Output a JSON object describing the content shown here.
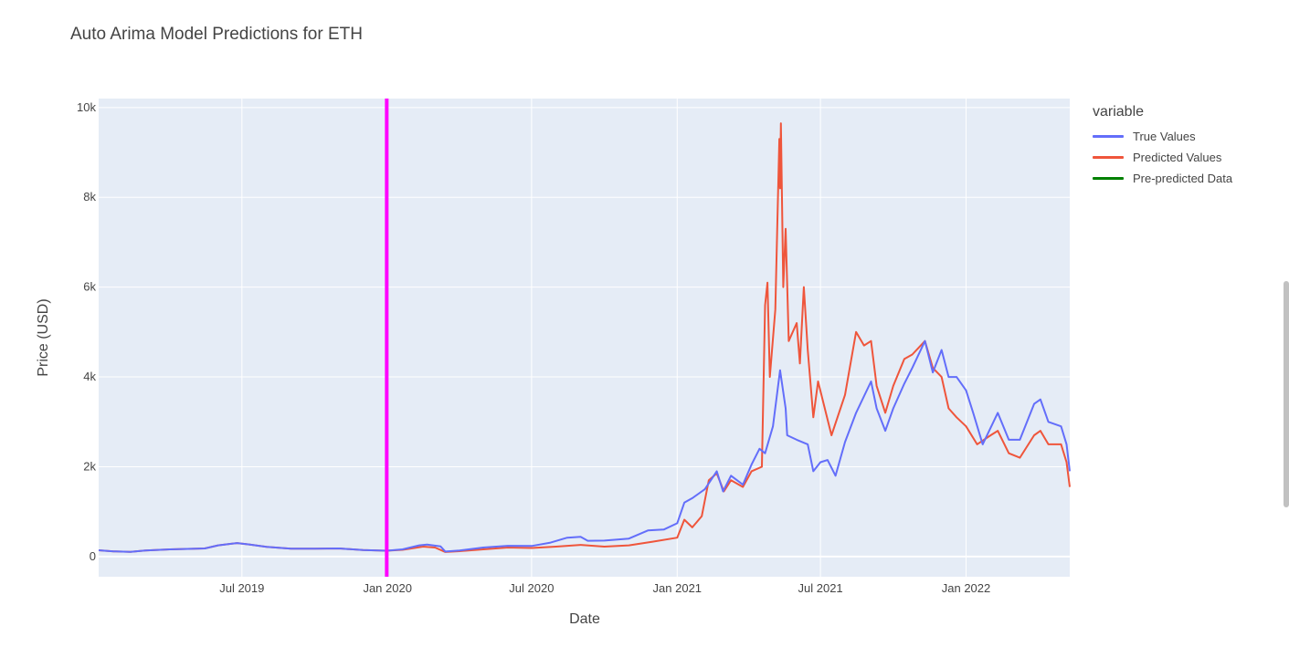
{
  "chart_data": {
    "type": "line",
    "title": "Auto Arima Model Predictions for ETH",
    "xlabel": "Date",
    "ylabel": "Price (USD)",
    "x_range": [
      "2019-01-01",
      "2022-05-12"
    ],
    "ylim": [
      -450,
      10200
    ],
    "x_ticks": [
      {
        "date": "2019-07-01",
        "label": "Jul 2019"
      },
      {
        "date": "2020-01-01",
        "label": "Jan 2020"
      },
      {
        "date": "2020-07-01",
        "label": "Jul 2020"
      },
      {
        "date": "2021-01-01",
        "label": "Jan 2021"
      },
      {
        "date": "2021-07-01",
        "label": "Jul 2021"
      },
      {
        "date": "2022-01-01",
        "label": "Jan 2022"
      }
    ],
    "y_ticks": [
      {
        "value": 0,
        "label": "0"
      },
      {
        "value": 2000,
        "label": "2k"
      },
      {
        "value": 4000,
        "label": "4k"
      },
      {
        "value": 6000,
        "label": "6k"
      },
      {
        "value": 8000,
        "label": "8k"
      },
      {
        "value": 10000,
        "label": "10k"
      }
    ],
    "grid": true,
    "legend": {
      "title": "variable",
      "position": "right"
    },
    "vertical_marker": {
      "date": "2019-12-31",
      "color": "#ff00ff"
    },
    "series": [
      {
        "name": "True Values",
        "color": "#636efa",
        "points": [
          [
            "2019-01-01",
            140
          ],
          [
            "2019-01-20",
            115
          ],
          [
            "2019-02-10",
            105
          ],
          [
            "2019-03-01",
            135
          ],
          [
            "2019-04-01",
            160
          ],
          [
            "2019-05-15",
            180
          ],
          [
            "2019-06-01",
            250
          ],
          [
            "2019-06-25",
            300
          ],
          [
            "2019-07-10",
            270
          ],
          [
            "2019-08-01",
            215
          ],
          [
            "2019-09-01",
            175
          ],
          [
            "2019-10-01",
            175
          ],
          [
            "2019-11-01",
            180
          ],
          [
            "2019-12-01",
            145
          ],
          [
            "2019-12-31",
            130
          ],
          [
            "2020-01-20",
            160
          ],
          [
            "2020-02-10",
            250
          ],
          [
            "2020-02-20",
            265
          ],
          [
            "2020-03-08",
            225
          ],
          [
            "2020-03-14",
            110
          ],
          [
            "2020-04-01",
            135
          ],
          [
            "2020-05-01",
            200
          ],
          [
            "2020-06-01",
            240
          ],
          [
            "2020-07-01",
            235
          ],
          [
            "2020-07-25",
            310
          ],
          [
            "2020-08-15",
            420
          ],
          [
            "2020-09-01",
            440
          ],
          [
            "2020-09-10",
            350
          ],
          [
            "2020-10-01",
            355
          ],
          [
            "2020-11-01",
            400
          ],
          [
            "2020-11-25",
            580
          ],
          [
            "2020-12-15",
            600
          ],
          [
            "2021-01-01",
            740
          ],
          [
            "2021-01-10",
            1200
          ],
          [
            "2021-01-20",
            1300
          ],
          [
            "2021-02-05",
            1500
          ],
          [
            "2021-02-20",
            1900
          ],
          [
            "2021-02-28",
            1450
          ],
          [
            "2021-03-10",
            1800
          ],
          [
            "2021-03-25",
            1600
          ],
          [
            "2021-04-05",
            2050
          ],
          [
            "2021-04-15",
            2400
          ],
          [
            "2021-04-22",
            2300
          ],
          [
            "2021-05-02",
            2900
          ],
          [
            "2021-05-11",
            4150
          ],
          [
            "2021-05-18",
            3300
          ],
          [
            "2021-05-20",
            2700
          ],
          [
            "2021-06-01",
            2600
          ],
          [
            "2021-06-15",
            2500
          ],
          [
            "2021-06-22",
            1900
          ],
          [
            "2021-07-01",
            2100
          ],
          [
            "2021-07-10",
            2150
          ],
          [
            "2021-07-20",
            1800
          ],
          [
            "2021-08-01",
            2550
          ],
          [
            "2021-08-15",
            3200
          ],
          [
            "2021-09-03",
            3900
          ],
          [
            "2021-09-10",
            3300
          ],
          [
            "2021-09-21",
            2800
          ],
          [
            "2021-10-01",
            3300
          ],
          [
            "2021-10-15",
            3850
          ],
          [
            "2021-10-25",
            4200
          ],
          [
            "2021-11-10",
            4800
          ],
          [
            "2021-11-20",
            4100
          ],
          [
            "2021-12-01",
            4600
          ],
          [
            "2021-12-10",
            4000
          ],
          [
            "2021-12-20",
            4000
          ],
          [
            "2022-01-01",
            3700
          ],
          [
            "2022-01-10",
            3200
          ],
          [
            "2022-01-22",
            2500
          ],
          [
            "2022-02-10",
            3200
          ],
          [
            "2022-02-24",
            2600
          ],
          [
            "2022-03-10",
            2600
          ],
          [
            "2022-03-28",
            3400
          ],
          [
            "2022-04-05",
            3500
          ],
          [
            "2022-04-15",
            3000
          ],
          [
            "2022-05-01",
            2900
          ],
          [
            "2022-05-08",
            2500
          ],
          [
            "2022-05-12",
            1900
          ]
        ]
      },
      {
        "name": "Predicted Values",
        "color": "#ef553b",
        "points": [
          [
            "2019-01-01",
            140
          ],
          [
            "2019-01-20",
            115
          ],
          [
            "2019-02-10",
            105
          ],
          [
            "2019-03-01",
            135
          ],
          [
            "2019-04-01",
            160
          ],
          [
            "2019-05-15",
            180
          ],
          [
            "2019-06-01",
            250
          ],
          [
            "2019-06-25",
            300
          ],
          [
            "2019-07-10",
            270
          ],
          [
            "2019-08-01",
            215
          ],
          [
            "2019-09-01",
            175
          ],
          [
            "2019-10-01",
            175
          ],
          [
            "2019-11-01",
            180
          ],
          [
            "2019-12-01",
            145
          ],
          [
            "2019-12-31",
            130
          ],
          [
            "2020-01-20",
            150
          ],
          [
            "2020-02-15",
            220
          ],
          [
            "2020-03-01",
            200
          ],
          [
            "2020-03-14",
            100
          ],
          [
            "2020-04-01",
            120
          ],
          [
            "2020-05-01",
            160
          ],
          [
            "2020-06-01",
            200
          ],
          [
            "2020-07-01",
            190
          ],
          [
            "2020-08-01",
            220
          ],
          [
            "2020-09-01",
            260
          ],
          [
            "2020-10-01",
            220
          ],
          [
            "2020-11-01",
            250
          ],
          [
            "2020-12-01",
            330
          ],
          [
            "2021-01-01",
            420
          ],
          [
            "2021-01-10",
            820
          ],
          [
            "2021-01-20",
            650
          ],
          [
            "2021-02-01",
            900
          ],
          [
            "2021-02-10",
            1700
          ],
          [
            "2021-02-20",
            1850
          ],
          [
            "2021-03-01",
            1450
          ],
          [
            "2021-03-10",
            1700
          ],
          [
            "2021-03-25",
            1550
          ],
          [
            "2021-04-05",
            1900
          ],
          [
            "2021-04-18",
            2000
          ],
          [
            "2021-04-22",
            5600
          ],
          [
            "2021-04-25",
            6100
          ],
          [
            "2021-04-28",
            4000
          ],
          [
            "2021-05-05",
            5500
          ],
          [
            "2021-05-10",
            9300
          ],
          [
            "2021-05-11",
            8200
          ],
          [
            "2021-05-12",
            9650
          ],
          [
            "2021-05-15",
            6000
          ],
          [
            "2021-05-18",
            7300
          ],
          [
            "2021-05-22",
            4800
          ],
          [
            "2021-06-01",
            5200
          ],
          [
            "2021-06-05",
            4300
          ],
          [
            "2021-06-10",
            6000
          ],
          [
            "2021-06-15",
            4600
          ],
          [
            "2021-06-22",
            3100
          ],
          [
            "2021-06-28",
            3900
          ],
          [
            "2021-07-15",
            2700
          ],
          [
            "2021-08-01",
            3600
          ],
          [
            "2021-08-15",
            5000
          ],
          [
            "2021-08-25",
            4700
          ],
          [
            "2021-09-03",
            4800
          ],
          [
            "2021-09-10",
            3800
          ],
          [
            "2021-09-21",
            3200
          ],
          [
            "2021-10-01",
            3800
          ],
          [
            "2021-10-15",
            4400
          ],
          [
            "2021-10-25",
            4500
          ],
          [
            "2021-11-10",
            4800
          ],
          [
            "2021-11-20",
            4200
          ],
          [
            "2021-12-01",
            4000
          ],
          [
            "2021-12-10",
            3300
          ],
          [
            "2021-12-20",
            3100
          ],
          [
            "2022-01-01",
            2900
          ],
          [
            "2022-01-15",
            2500
          ],
          [
            "2022-02-01",
            2700
          ],
          [
            "2022-02-10",
            2800
          ],
          [
            "2022-02-24",
            2300
          ],
          [
            "2022-03-10",
            2200
          ],
          [
            "2022-03-28",
            2700
          ],
          [
            "2022-04-05",
            2800
          ],
          [
            "2022-04-15",
            2500
          ],
          [
            "2022-05-01",
            2500
          ],
          [
            "2022-05-08",
            2100
          ],
          [
            "2022-05-12",
            1550
          ]
        ]
      },
      {
        "name": "Pre-predicted Data",
        "color": "#008000",
        "points": []
      }
    ]
  }
}
